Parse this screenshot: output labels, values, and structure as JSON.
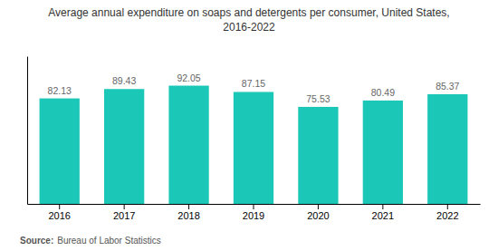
{
  "chart_data": {
    "type": "bar",
    "title": "Average annual expenditure on soaps and detergents per consumer, United States,",
    "subtitle": "2016-2022",
    "categories": [
      "2016",
      "2017",
      "2018",
      "2019",
      "2020",
      "2021",
      "2022"
    ],
    "values": [
      82.13,
      89.43,
      92.05,
      87.15,
      75.53,
      80.49,
      85.37
    ],
    "color": "#1BC8B8",
    "ylim": [
      0,
      115
    ],
    "grid": false,
    "data_labels": true,
    "tick_labels": "x",
    "annotations": [
      "Source:",
      "Bureau of Labor Statistics"
    ]
  }
}
